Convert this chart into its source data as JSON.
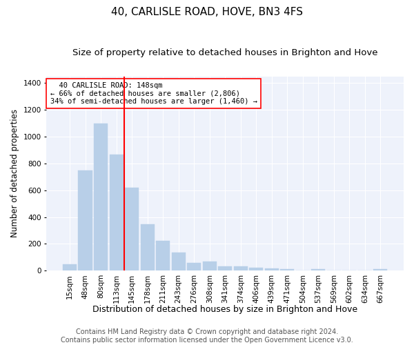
{
  "title": "40, CARLISLE ROAD, HOVE, BN3 4FS",
  "subtitle": "Size of property relative to detached houses in Brighton and Hove",
  "xlabel": "Distribution of detached houses by size in Brighton and Hove",
  "ylabel": "Number of detached properties",
  "categories": [
    "15sqm",
    "48sqm",
    "80sqm",
    "113sqm",
    "145sqm",
    "178sqm",
    "211sqm",
    "243sqm",
    "276sqm",
    "308sqm",
    "341sqm",
    "374sqm",
    "406sqm",
    "439sqm",
    "471sqm",
    "504sqm",
    "537sqm",
    "569sqm",
    "602sqm",
    "634sqm",
    "667sqm"
  ],
  "values": [
    50,
    750,
    1100,
    865,
    620,
    345,
    225,
    135,
    60,
    70,
    30,
    30,
    22,
    15,
    10,
    0,
    13,
    0,
    0,
    0,
    13
  ],
  "bar_color": "#b8cfe8",
  "bar_edgecolor": "#b8cfe8",
  "vline_x": 3.5,
  "vline_color": "red",
  "ylim": [
    0,
    1450
  ],
  "yticks": [
    0,
    200,
    400,
    600,
    800,
    1000,
    1200,
    1400
  ],
  "annotation_title": "  40 CARLISLE ROAD: 148sqm",
  "annotation_line1": "← 66% of detached houses are smaller (2,806)",
  "annotation_line2": "34% of semi-detached houses are larger (1,460) →",
  "annotation_box_color": "red",
  "footer1": "Contains HM Land Registry data © Crown copyright and database right 2024.",
  "footer2": "Contains public sector information licensed under the Open Government Licence v3.0.",
  "bg_color": "#eef2fb",
  "title_fontsize": 11,
  "subtitle_fontsize": 9.5,
  "xlabel_fontsize": 9,
  "ylabel_fontsize": 8.5,
  "tick_fontsize": 7.5,
  "annotation_fontsize": 7.5,
  "footer_fontsize": 7
}
